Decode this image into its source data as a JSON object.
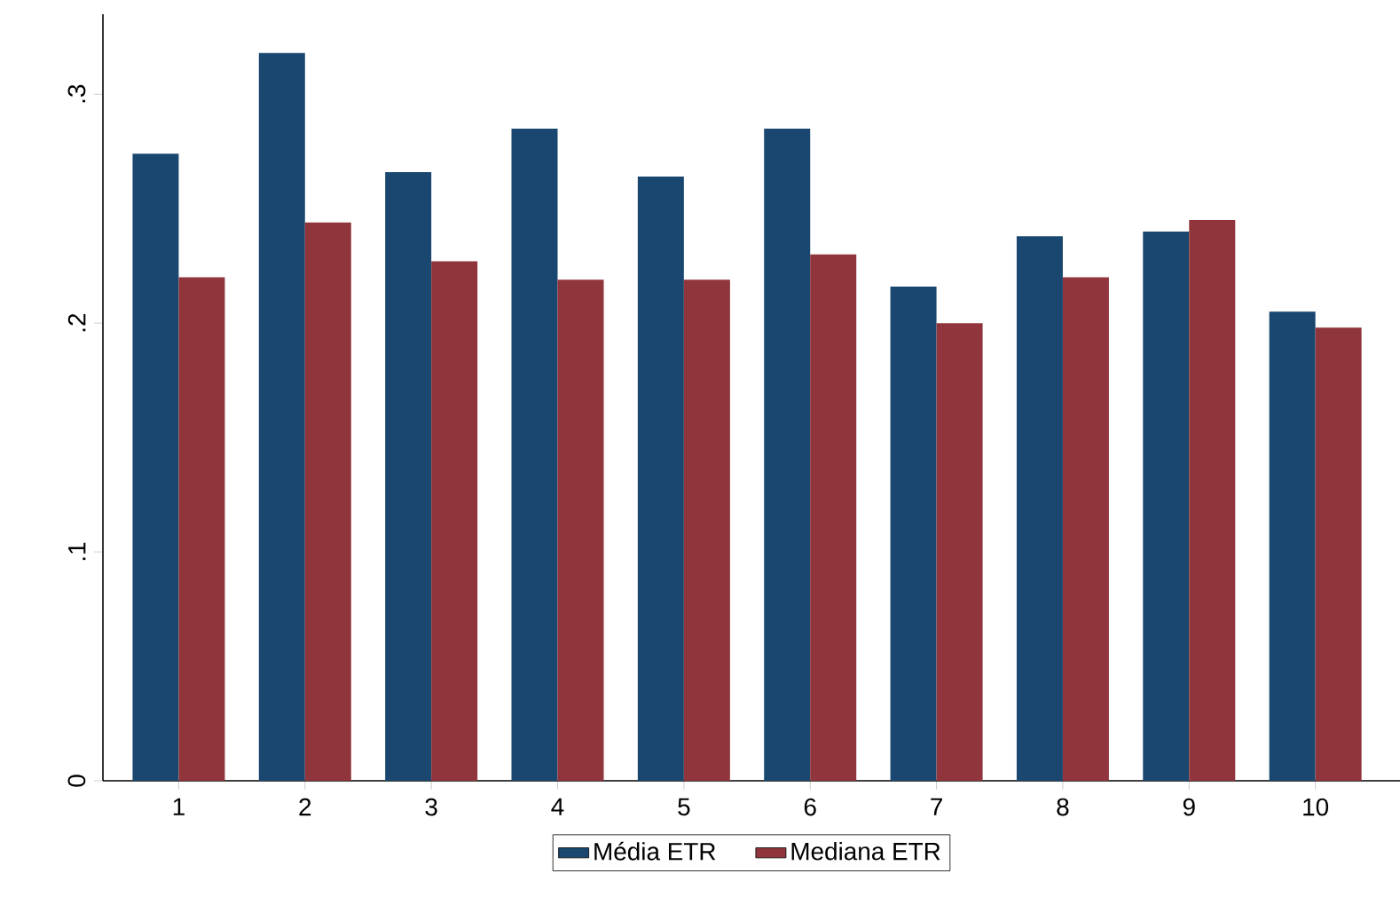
{
  "chart_data": {
    "type": "bar",
    "categories": [
      "1",
      "2",
      "3",
      "4",
      "5",
      "6",
      "7",
      "8",
      "9",
      "10"
    ],
    "series": [
      {
        "name": "Média ETR",
        "color": "#1a476f",
        "values": [
          0.274,
          0.318,
          0.266,
          0.285,
          0.264,
          0.285,
          0.216,
          0.238,
          0.24,
          0.205
        ]
      },
      {
        "name": "Mediana ETR",
        "color": "#90353b",
        "values": [
          0.22,
          0.244,
          0.227,
          0.219,
          0.219,
          0.23,
          0.2,
          0.22,
          0.245,
          0.198
        ]
      }
    ],
    "ylim": [
      0,
      0.335
    ],
    "yticks": [
      {
        "value": 0,
        "label": "0"
      },
      {
        "value": 0.1,
        "label": ".1"
      },
      {
        "value": 0.2,
        "label": ".2"
      },
      {
        "value": 0.3,
        "label": ".3"
      }
    ],
    "grid": false,
    "legend": "bottom"
  }
}
